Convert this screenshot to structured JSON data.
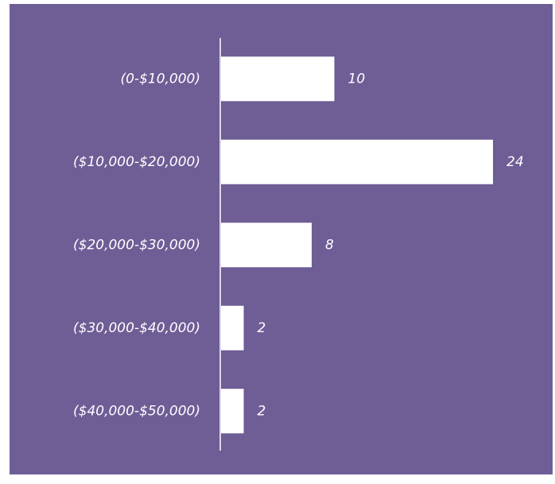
{
  "chart_data": {
    "type": "bar",
    "orientation": "horizontal",
    "categories": [
      "(0-$10,000)",
      "($10,000-$20,000)",
      "($20,000-$30,000)",
      "($30,000-$40,000)",
      "($40,000-$50,000)"
    ],
    "values": [
      10,
      24,
      8,
      2,
      2
    ],
    "color": "#ffffff",
    "background": "#6f5d96"
  }
}
